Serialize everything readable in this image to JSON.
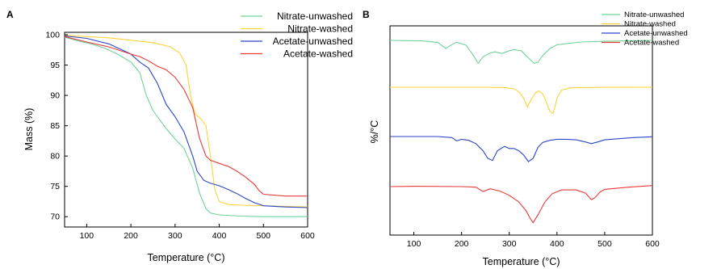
{
  "panels": [
    {
      "letter": "A",
      "chart_data": {
        "type": "line",
        "title": "",
        "xlabel": "Temperature (°C)",
        "ylabel": "Mass (%)",
        "xlim": [
          50,
          600
        ],
        "ylim": [
          68.3,
          100.4
        ],
        "xticks": [
          100,
          200,
          300,
          400,
          500,
          600
        ],
        "yticks": [
          70,
          75,
          80,
          85,
          90,
          95,
          100
        ],
        "grid": false,
        "legend_position": "top-right",
        "series": [
          {
            "name": "Nitrate-unwashed",
            "color": "#6fd39a",
            "x": [
              50,
              80,
              110,
              140,
              170,
              200,
              220,
              235,
              250,
              265,
              280,
              300,
              320,
              340,
              355,
              370,
              380,
              400,
              450,
              500,
              550,
              600
            ],
            "y": [
              99.6,
              99.0,
              98.5,
              97.8,
              96.8,
              95.5,
              93.8,
              90.0,
              87.5,
              86.0,
              84.5,
              82.8,
              81.3,
              78.0,
              74.0,
              71.3,
              70.6,
              70.3,
              70.1,
              70.0,
              70.0,
              70.0
            ]
          },
          {
            "name": "Nitrate-washed",
            "color": "#ffd23a",
            "x": [
              50,
              100,
              150,
              200,
              250,
              290,
              310,
              325,
              335,
              345,
              360,
              370,
              380,
              390,
              400,
              420,
              450,
              500,
              550,
              600
            ],
            "y": [
              99.9,
              99.7,
              99.5,
              99.1,
              98.7,
              98.0,
              97.0,
              95.0,
              90.0,
              87.0,
              86.0,
              85.0,
              80.0,
              74.5,
              72.5,
              72.0,
              71.9,
              71.8,
              71.7,
              71.6
            ]
          },
          {
            "name": "Acetate-unwashed",
            "color": "#2a45c9",
            "x": [
              50,
              100,
              150,
              180,
              200,
              220,
              240,
              260,
              280,
              300,
              320,
              340,
              350,
              365,
              380,
              400,
              420,
              440,
              460,
              480,
              500,
              550,
              600
            ],
            "y": [
              99.8,
              99.4,
              98.5,
              97.5,
              96.8,
              95.5,
              94.5,
              92.0,
              88.5,
              86.5,
              84.0,
              80.0,
              77.5,
              76.0,
              75.5,
              75.1,
              74.5,
              73.8,
              73.0,
              72.3,
              71.8,
              71.6,
              71.5
            ]
          },
          {
            "name": "Acetate-washed",
            "color": "#e63a3a",
            "x": [
              50,
              100,
              150,
              200,
              220,
              240,
              260,
              280,
              300,
              320,
              340,
              355,
              370,
              380,
              400,
              420,
              440,
              460,
              480,
              490,
              500,
              550,
              600
            ],
            "y": [
              99.7,
              98.8,
              98.0,
              96.8,
              96.4,
              95.7,
              94.8,
              94.2,
              93.0,
              91.0,
              88.0,
              83.0,
              80.0,
              79.3,
              78.8,
              78.3,
              77.5,
              76.5,
              75.3,
              74.3,
              73.7,
              73.4,
              73.4
            ]
          }
        ]
      }
    },
    {
      "letter": "B",
      "chart_data": {
        "type": "line",
        "title": "",
        "xlabel": "Temperature (°C)",
        "ylabel": "%/°C",
        "xlim": [
          50,
          600
        ],
        "xticks": [
          100,
          200,
          300,
          400,
          500,
          600
        ],
        "y_tick_labels": false,
        "grid": false,
        "legend_position": "top-right",
        "series": [
          {
            "name": "Nitrate-unwashed",
            "color": "#6fd39a",
            "x": [
              50,
              120,
              150,
              160,
              167,
              175,
              190,
              210,
              225,
              235,
              245,
              260,
              270,
              285,
              300,
              310,
              325,
              340,
              352,
              360,
              370,
              385,
              400,
              450,
              500,
              550,
              600
            ],
            "y": [
              0.0,
              -0.5,
              -1.8,
              -5.0,
              -7.5,
              -5.0,
              -1.6,
              -4.5,
              -14.0,
              -21.0,
              -15.0,
              -11.5,
              -10.5,
              -12.0,
              -9.5,
              -8.5,
              -9.5,
              -16.0,
              -21.0,
              -20.0,
              -14.0,
              -7.5,
              -4.0,
              -1.5,
              -0.8,
              -0.3,
              0.0
            ]
          },
          {
            "name": "Nitrate-washed",
            "color": "#ffd23a",
            "x": [
              50,
              150,
              250,
              290,
              310,
              320,
              330,
              338,
              345,
              355,
              362,
              370,
              378,
              385,
              392,
              400,
              410,
              430,
              500,
              600
            ],
            "y": [
              0.0,
              0.0,
              0.0,
              -0.3,
              -1.5,
              -4.0,
              -10.0,
              -18.0,
              -12.0,
              -5.0,
              -3.5,
              -6.0,
              -14.0,
              -22.0,
              -24.0,
              -10.0,
              -2.5,
              -0.5,
              -0.1,
              0.0
            ]
          },
          {
            "name": "Acetate-unwashed",
            "color": "#2a45c9",
            "x": [
              50,
              150,
              180,
              190,
              200,
              215,
              230,
              245,
              255,
              265,
              275,
              290,
              300,
              310,
              320,
              330,
              340,
              350,
              360,
              370,
              385,
              400,
              420,
              440,
              460,
              472,
              485,
              500,
              530,
              560,
              600
            ],
            "y": [
              0.0,
              0.0,
              -1.0,
              -4.0,
              -2.5,
              -3.5,
              -6.5,
              -13.0,
              -20.0,
              -22.0,
              -13.0,
              -9.0,
              -11.0,
              -11.0,
              -13.0,
              -17.0,
              -23.0,
              -20.0,
              -10.0,
              -5.5,
              -3.5,
              -2.5,
              -2.5,
              -3.0,
              -5.0,
              -6.5,
              -5.0,
              -3.0,
              -2.0,
              -1.0,
              -0.2
            ]
          },
          {
            "name": "Acetate-washed",
            "color": "#e63a3a",
            "x": [
              50,
              100,
              200,
              230,
              245,
              260,
              280,
              300,
              320,
              335,
              345,
              350,
              360,
              375,
              390,
              410,
              440,
              460,
              472,
              480,
              490,
              500,
              550,
              600
            ],
            "y": [
              0.0,
              0.3,
              0.0,
              -0.5,
              -4.5,
              -2.0,
              -4.0,
              -8.0,
              -14.0,
              -22.0,
              -30.0,
              -33.0,
              -26.0,
              -14.0,
              -6.5,
              -3.0,
              -3.0,
              -6.0,
              -12.0,
              -10.0,
              -5.0,
              -2.5,
              -0.5,
              1.0
            ]
          }
        ]
      }
    }
  ]
}
